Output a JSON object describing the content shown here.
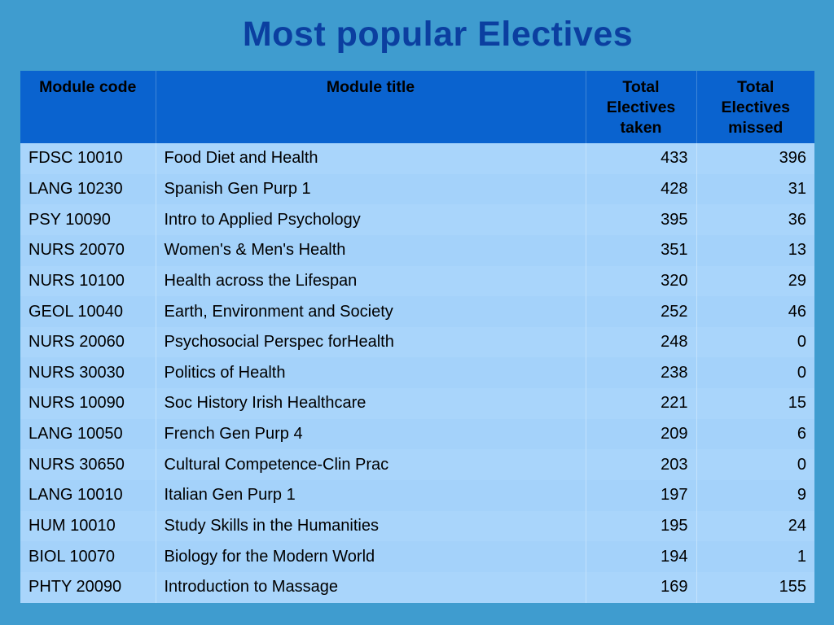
{
  "title": "Most popular Electives",
  "table": {
    "headers": {
      "code": "Module code",
      "title": "Module title",
      "taken_line1": "Total",
      "taken_line2": "Electives",
      "taken_line3": "taken",
      "missed_line1": "Total",
      "missed_line2": "Electives",
      "missed_line3": "missed"
    },
    "rows": [
      {
        "code": "FDSC 10010",
        "title": "Food Diet and Health",
        "taken": "433",
        "missed": "396"
      },
      {
        "code": "LANG 10230",
        "title": "Spanish Gen Purp 1",
        "taken": "428",
        "missed": "31"
      },
      {
        "code": "PSY 10090",
        "title": "Intro to Applied Psychology",
        "taken": "395",
        "missed": "36"
      },
      {
        "code": "NURS 20070",
        "title": "Women's & Men's Health",
        "taken": "351",
        "missed": "13"
      },
      {
        "code": "NURS 10100",
        "title": "Health across the Lifespan",
        "taken": "320",
        "missed": "29"
      },
      {
        "code": "GEOL 10040",
        "title": "Earth, Environment and Society",
        "taken": "252",
        "missed": "46"
      },
      {
        "code": "NURS 20060",
        "title": "Psychosocial Perspec forHealth",
        "taken": "248",
        "missed": "0"
      },
      {
        "code": "NURS 30030",
        "title": "Politics of Health",
        "taken": "238",
        "missed": "0"
      },
      {
        "code": "NURS 10090",
        "title": "Soc History Irish Healthcare",
        "taken": "221",
        "missed": "15"
      },
      {
        "code": "LANG 10050",
        "title": "French Gen Purp 4",
        "taken": "209",
        "missed": "6"
      },
      {
        "code": "NURS 30650",
        "title": "Cultural Competence-Clin Prac",
        "taken": "203",
        "missed": "0"
      },
      {
        "code": "LANG 10010",
        "title": "Italian Gen Purp 1",
        "taken": "197",
        "missed": "9"
      },
      {
        "code": "HUM 10010",
        "title": "Study Skills in the Humanities",
        "taken": "195",
        "missed": "24"
      },
      {
        "code": "BIOL 10070",
        "title": "Biology for the Modern World",
        "taken": "194",
        "missed": "1"
      },
      {
        "code": "PHTY 20090",
        "title": "Introduction to Massage",
        "taken": "169",
        "missed": "155"
      }
    ]
  }
}
